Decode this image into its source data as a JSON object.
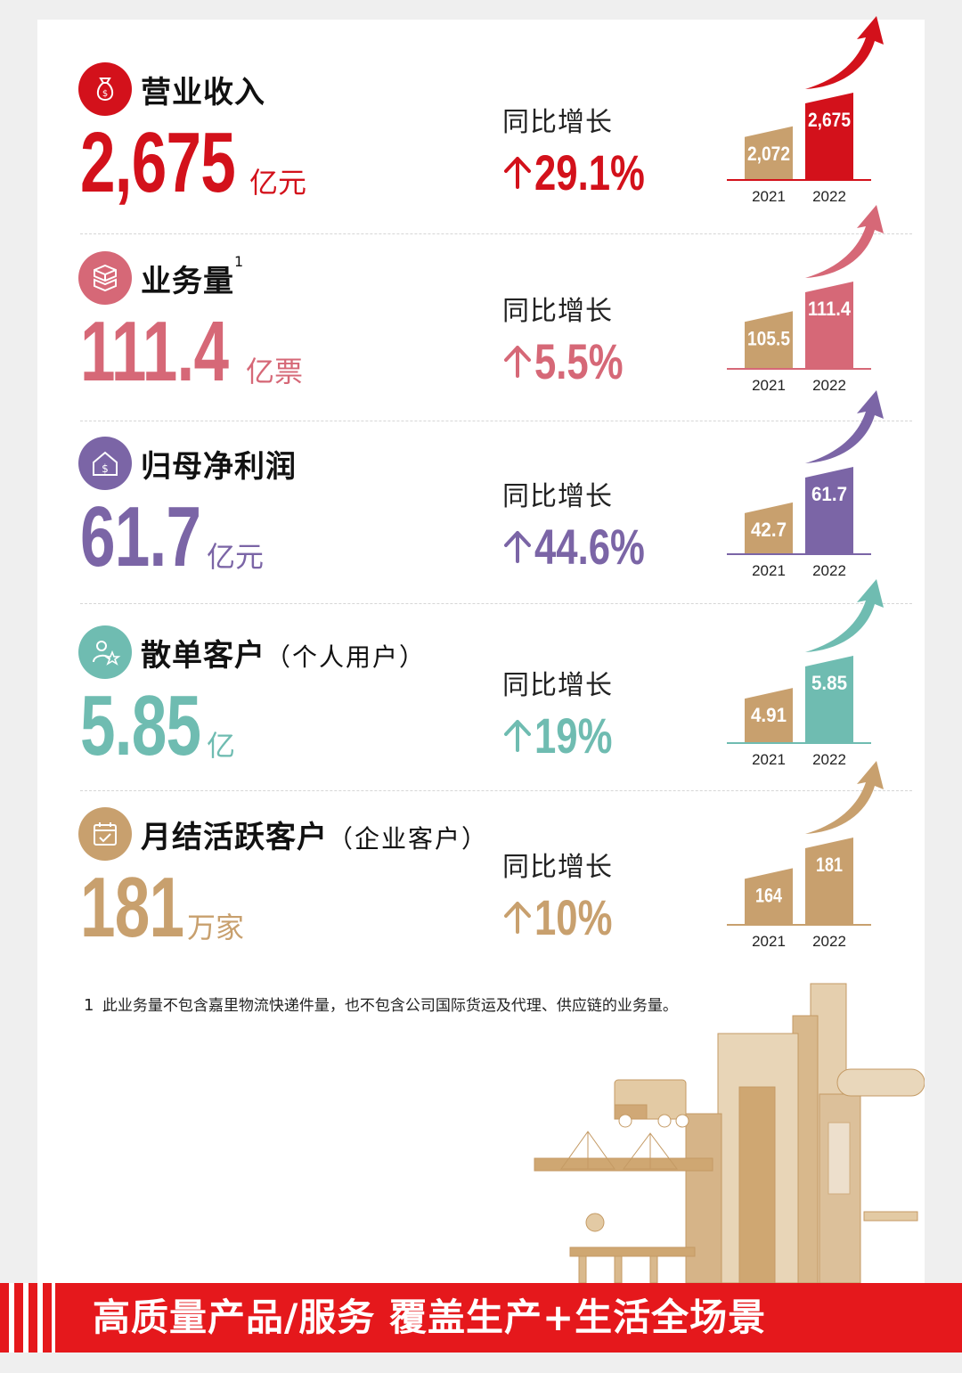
{
  "metrics": [
    {
      "title": "营业收入",
      "title_sup": "",
      "title_sub": "",
      "value": "2,675",
      "unit": "亿元",
      "yoy_label": "同比增长",
      "yoy_value": "29.1%",
      "color": "#d3111b",
      "color_light": "#c8a06e",
      "icon": "money-bag-icon"
    },
    {
      "title": "业务量",
      "title_sup": "1",
      "title_sub": "",
      "value": "111.4",
      "unit": "亿票",
      "yoy_label": "同比增长",
      "yoy_value": "5.5%",
      "color": "#d66877",
      "color_light": "#c8a06e",
      "icon": "boxes-icon"
    },
    {
      "title": "归母净利润",
      "title_sup": "",
      "title_sub": "",
      "value": "61.7",
      "unit": "亿元",
      "yoy_label": "同比增长",
      "yoy_value": "44.6%",
      "color": "#7b65a6",
      "color_light": "#c8a06e",
      "icon": "house-dollar-icon"
    },
    {
      "title": "散单客户",
      "title_sup": "",
      "title_sub": "（个人用户）",
      "value": "5.85",
      "unit": "亿",
      "yoy_label": "同比增长",
      "yoy_value": "19%",
      "color": "#6fbcb1",
      "color_light": "#c8a06e",
      "icon": "person-star-icon"
    },
    {
      "title": "月结活跃客户",
      "title_sup": "",
      "title_sub": "（企业客户）",
      "value": "181",
      "unit": "万家",
      "yoy_label": "同比增长",
      "yoy_value": "10%",
      "color": "#c8a06e",
      "color_light": "#c8a06e",
      "icon": "calendar-check-icon"
    }
  ],
  "chart_data": [
    {
      "type": "bar",
      "categories": [
        "2021",
        "2022"
      ],
      "values": [
        2072,
        2675
      ],
      "labels": [
        "2,072",
        "2,675"
      ]
    },
    {
      "type": "bar",
      "categories": [
        "2021",
        "2022"
      ],
      "values": [
        105.5,
        111.4
      ],
      "labels": [
        "105.5",
        "111.4"
      ]
    },
    {
      "type": "bar",
      "categories": [
        "2021",
        "2022"
      ],
      "values": [
        42.7,
        61.7
      ],
      "labels": [
        "42.7",
        "61.7"
      ]
    },
    {
      "type": "bar",
      "categories": [
        "2021",
        "2022"
      ],
      "values": [
        4.91,
        5.85
      ],
      "labels": [
        "4.91",
        "5.85"
      ]
    },
    {
      "type": "bar",
      "categories": [
        "2021",
        "2022"
      ],
      "values": [
        164,
        181
      ],
      "labels": [
        "164",
        "181"
      ]
    }
  ],
  "footnote": {
    "number": "1",
    "text": "此业务量不包含嘉里物流快递件量，也不包含公司国际货运及代理、供应链的业务量。"
  },
  "banner": {
    "text": "高质量产品/服务  覆盖生产+生活全场景",
    "color": "#e5181c"
  },
  "illustration": {
    "icon": "city-logistics-illustration",
    "color": "#c8a06e"
  }
}
